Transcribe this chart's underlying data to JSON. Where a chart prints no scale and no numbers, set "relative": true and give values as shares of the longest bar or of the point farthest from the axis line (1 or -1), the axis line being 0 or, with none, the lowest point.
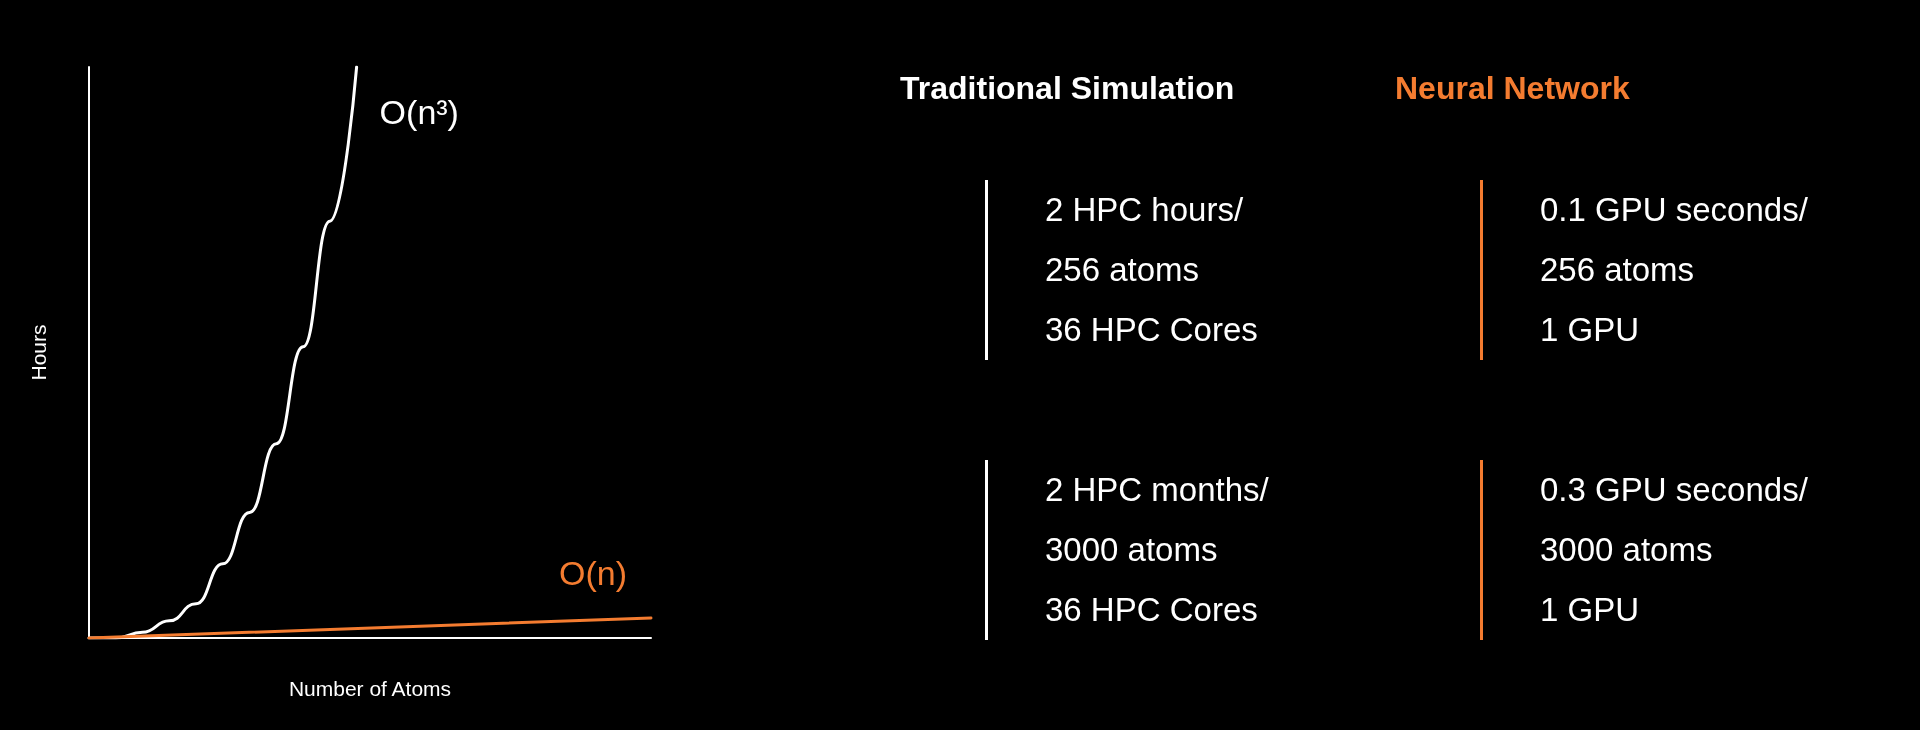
{
  "chart_data": [
    {
      "type": "line",
      "relative": true,
      "xlabel": "Number of Atoms",
      "ylabel": "Hours",
      "categories": [
        null,
        null,
        null,
        null,
        null,
        null,
        null,
        null,
        null,
        null,
        null,
        null,
        null,
        null,
        null,
        null,
        null,
        null,
        null,
        null,
        null,
        null
      ],
      "series": [
        {
          "name": "O(n³)",
          "color": "#ffffff",
          "values": [
            0,
            0,
            0.01,
            0.03,
            0.06,
            0.13,
            0.22,
            0.34,
            0.51,
            0.73,
            1,
            null,
            null,
            null,
            null,
            null,
            null,
            null,
            null,
            null,
            null,
            null
          ]
        },
        {
          "name": "O(n)",
          "color": "#f47c30",
          "values": [
            0,
            null,
            null,
            null,
            null,
            null,
            null,
            null,
            null,
            null,
            null,
            null,
            null,
            null,
            null,
            null,
            null,
            null,
            null,
            null,
            null,
            0.035
          ]
        }
      ],
      "legend": false,
      "grid": false,
      "marker": "none"
    },
    {
      "type": "other",
      "categories": [
        "Traditional Simulation",
        "Neural Network"
      ],
      "colors": [
        "#ffffff",
        "#f47c30"
      ],
      "annotations": [
        "2 HPC hours/",
        "256 atoms",
        "36 HPC Cores",
        "0.1 GPU seconds/",
        "256 atoms",
        "1 GPU",
        "2 HPC months/",
        "3000 atoms",
        "36 HPC Cores",
        "0.3 GPU seconds/",
        "3000 atoms",
        "1 GPU"
      ]
    }
  ]
}
